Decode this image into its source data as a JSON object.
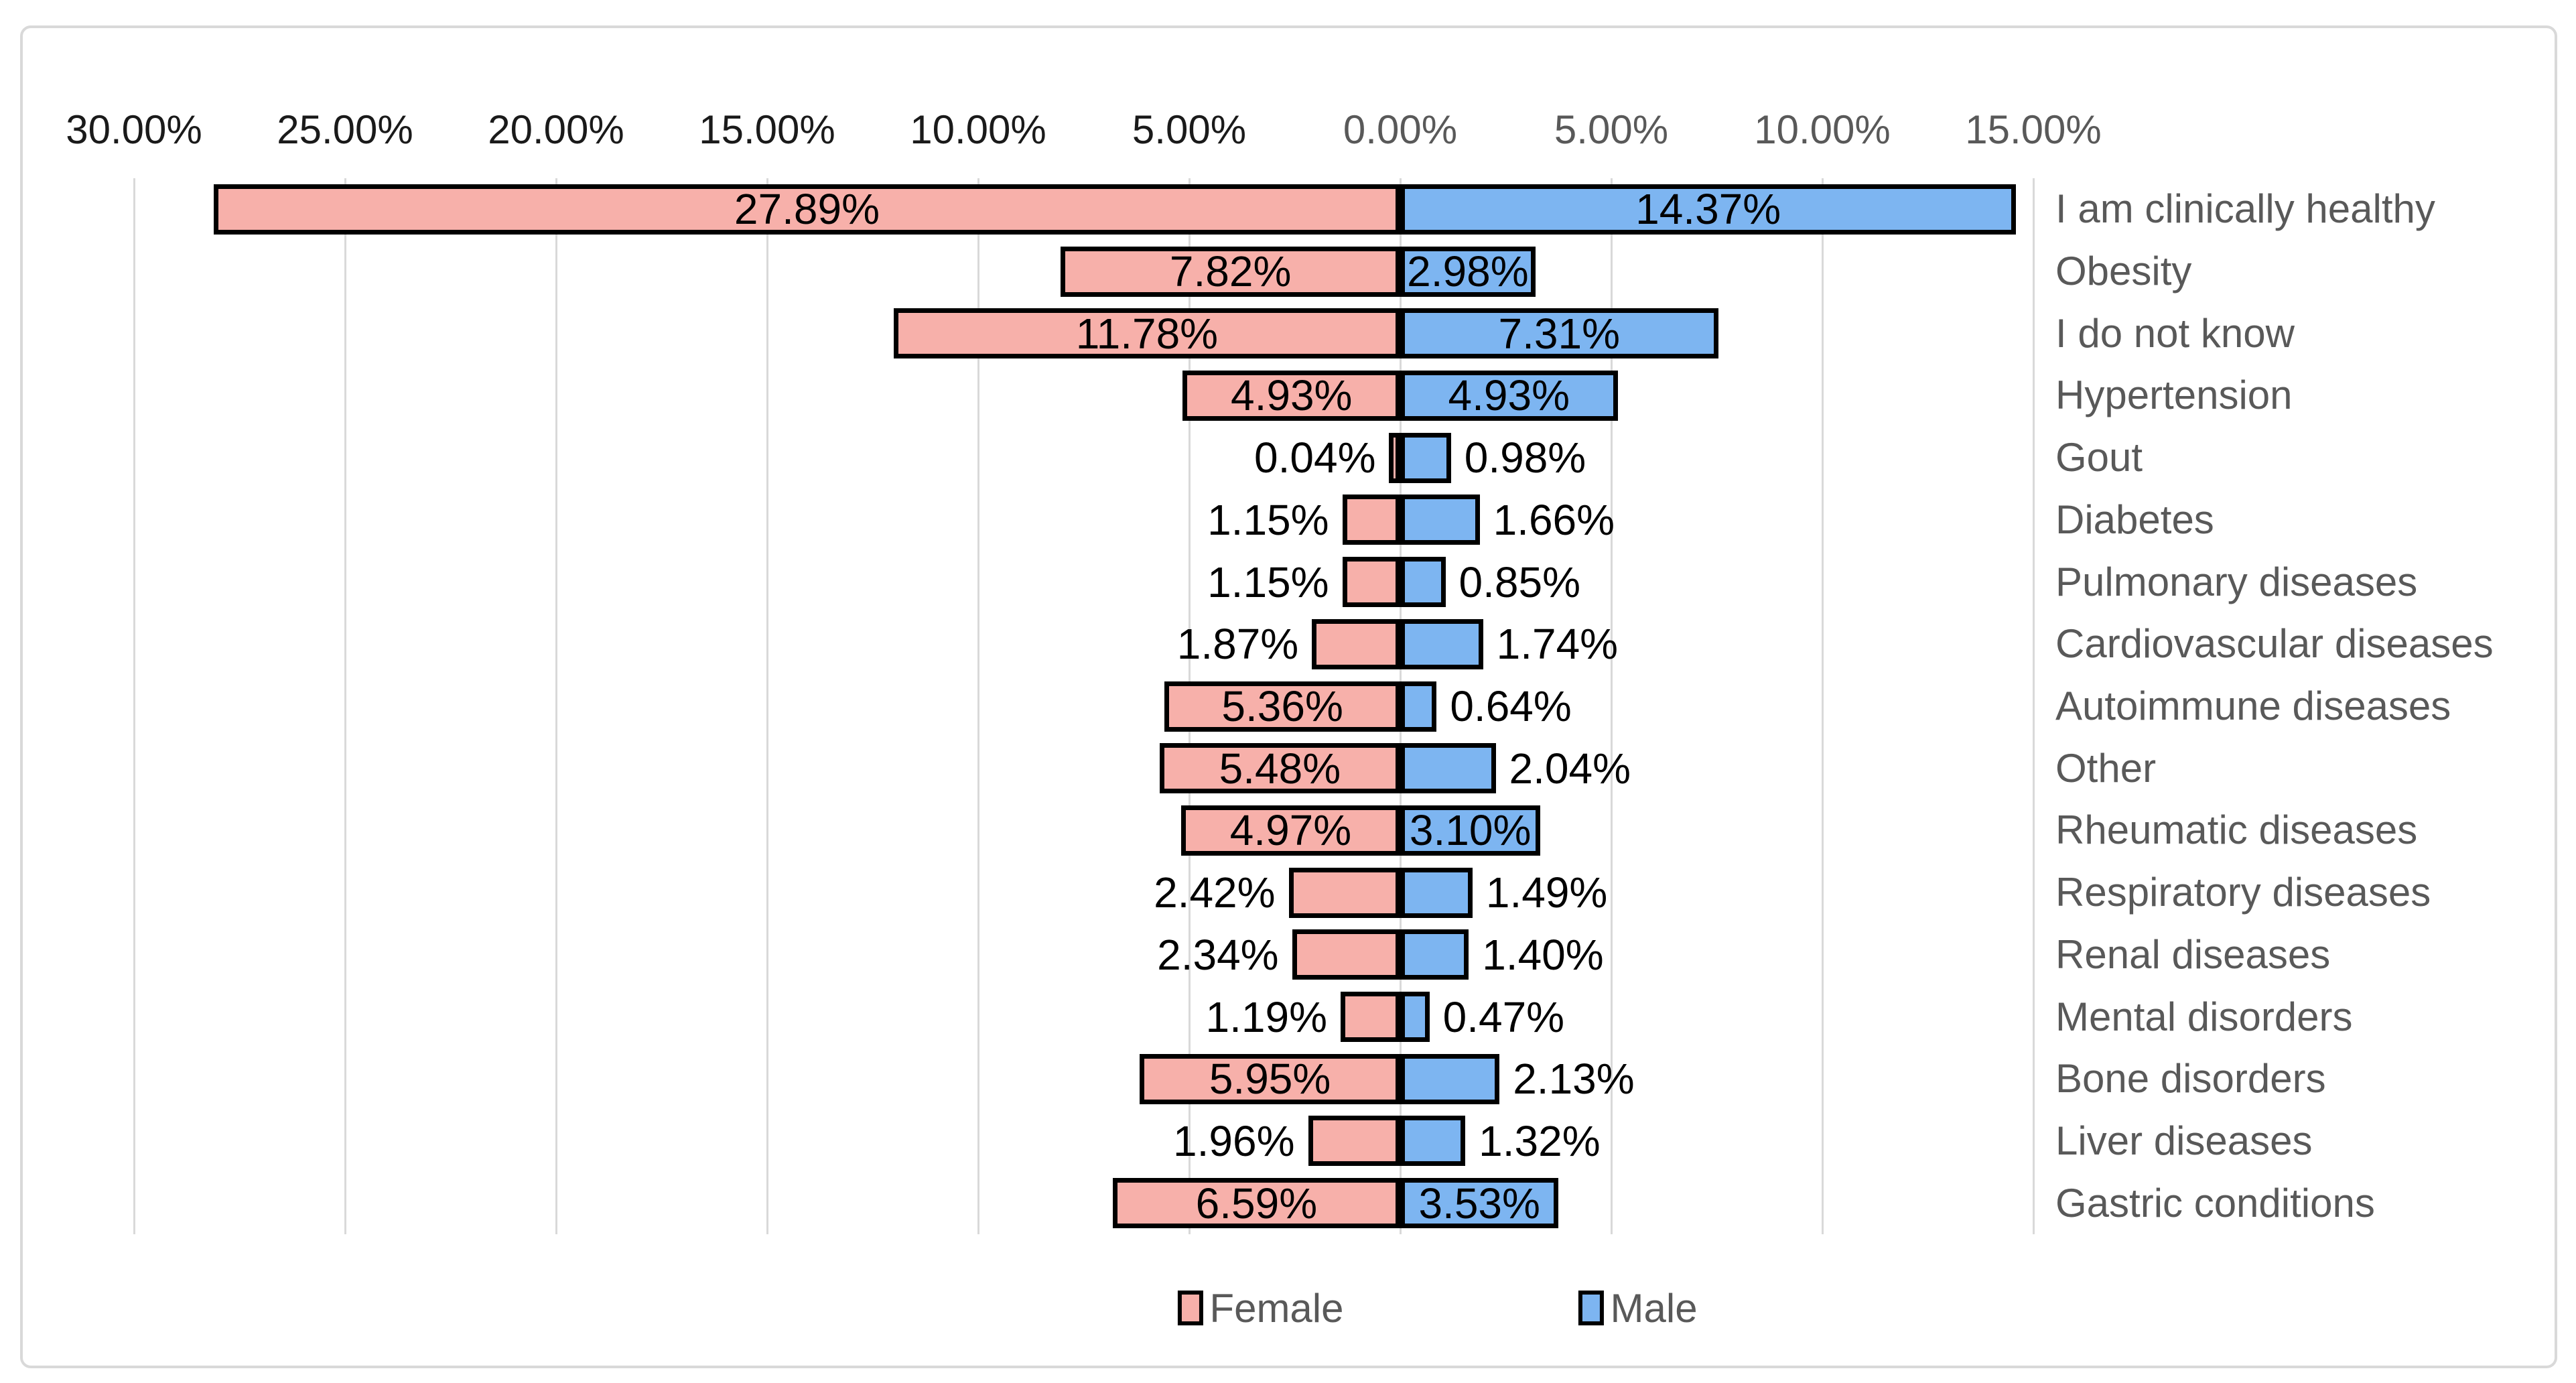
{
  "chart_data": {
    "type": "bar",
    "variant": "diverging-horizontal-tornado",
    "title": "",
    "xlabel": "",
    "ylabel": "",
    "grid": true,
    "legend_position": "bottom",
    "xlim_pct": [
      -30,
      15
    ],
    "ticks": [
      {
        "label": "30.00%",
        "value": -30
      },
      {
        "label": "25.00%",
        "value": -25
      },
      {
        "label": "20.00%",
        "value": -20
      },
      {
        "label": "15.00%",
        "value": -15
      },
      {
        "label": "10.00%",
        "value": -10
      },
      {
        "label": "5.00%",
        "value": -5
      },
      {
        "label": "0.00%",
        "value": 0
      },
      {
        "label": "5.00%",
        "value": 5
      },
      {
        "label": "10.00%",
        "value": 10
      },
      {
        "label": "15.00%",
        "value": 15
      }
    ],
    "categories": [
      "I am clinically healthy",
      "Obesity",
      "I do not know",
      "Hypertension",
      "Gout",
      "Diabetes",
      "Pulmonary diseases",
      "Cardiovascular diseases",
      "Autoimmune diseases",
      "Other",
      "Rheumatic diseases",
      "Respiratory diseases",
      "Renal diseases",
      "Mental disorders",
      "Bone disorders",
      "Liver diseases",
      "Gastric conditions"
    ],
    "series": [
      {
        "name": "Female",
        "color": "#F7B0AA",
        "values": [
          27.89,
          7.82,
          11.78,
          4.93,
          0.04,
          1.15,
          1.15,
          1.87,
          5.36,
          5.48,
          4.97,
          2.42,
          2.34,
          1.19,
          5.95,
          1.96,
          6.59
        ],
        "labels": [
          "27.89%",
          "7.82%",
          "11.78%",
          "4.93%",
          "0.04%",
          "1.15%",
          "1.15%",
          "1.87%",
          "5.36%",
          "5.48%",
          "4.97%",
          "2.42%",
          "2.34%",
          "1.19%",
          "5.95%",
          "1.96%",
          "6.59%"
        ]
      },
      {
        "name": "Male",
        "color": "#7DB5F1",
        "values": [
          14.37,
          2.98,
          7.31,
          4.93,
          0.98,
          1.66,
          0.85,
          1.74,
          0.64,
          2.04,
          3.1,
          1.49,
          1.4,
          0.47,
          2.13,
          1.32,
          3.53
        ],
        "labels": [
          "14.37%",
          "2.98%",
          "7.31%",
          "4.93%",
          "0.98%",
          "1.66%",
          "0.85%",
          "1.74%",
          "0.64%",
          "2.04%",
          "3.10%",
          "1.49%",
          "1.40%",
          "0.47%",
          "2.13%",
          "1.32%",
          "3.53%"
        ]
      }
    ],
    "colors": {
      "female_fill": "#F7B0AA",
      "male_fill": "#7DB5F1",
      "bar_border": "#000000",
      "gridline": "#D9D9D9",
      "chart_border": "#D9D9D9",
      "tick_negative_side": "#1A1A1A",
      "tick_positive_side": "#595959",
      "category_text": "#595959",
      "value_text": "#000000",
      "legend_text": "#595959"
    }
  },
  "legend": {
    "items": [
      {
        "label": "Female",
        "color": "#F7B0AA"
      },
      {
        "label": "Male",
        "color": "#7DB5F1"
      }
    ]
  }
}
